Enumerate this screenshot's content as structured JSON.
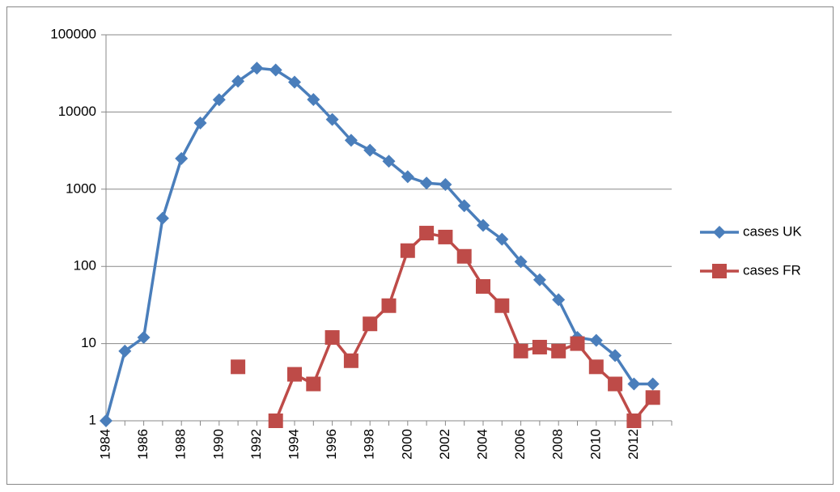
{
  "chart_data": {
    "type": "line",
    "categories": [
      "1984",
      null,
      "1986",
      null,
      "1988",
      null,
      "1990",
      null,
      "1992",
      null,
      "1994",
      null,
      "1996",
      null,
      "1998",
      null,
      "2000",
      null,
      "2002",
      null,
      "2004",
      null,
      "2006",
      null,
      "2008",
      null,
      "2010",
      null,
      "2012",
      null
    ],
    "series": [
      {
        "name": "cases UK",
        "color": "#4a7ebb",
        "marker": "diamond",
        "values": [
          1,
          8,
          12,
          420,
          2500,
          7200,
          14400,
          25000,
          37000,
          35000,
          24400,
          14500,
          8000,
          4300,
          3200,
          2300,
          1450,
          1200,
          1150,
          610,
          340,
          225,
          115,
          67,
          37,
          12,
          11,
          7,
          3,
          3
        ]
      },
      {
        "name": "cases FR",
        "color": "#be4b48",
        "marker": "square",
        "values": [
          null,
          null,
          null,
          null,
          null,
          null,
          null,
          5,
          null,
          1,
          4,
          3,
          12,
          6,
          18,
          31,
          160,
          270,
          240,
          135,
          55,
          31,
          8,
          9,
          8,
          10,
          5,
          3,
          1,
          2
        ]
      }
    ],
    "ylim": [
      1,
      100000
    ],
    "yticks": [
      1,
      10,
      100,
      1000,
      10000,
      100000
    ],
    "log_y": true,
    "grid": true,
    "legend": "right"
  }
}
